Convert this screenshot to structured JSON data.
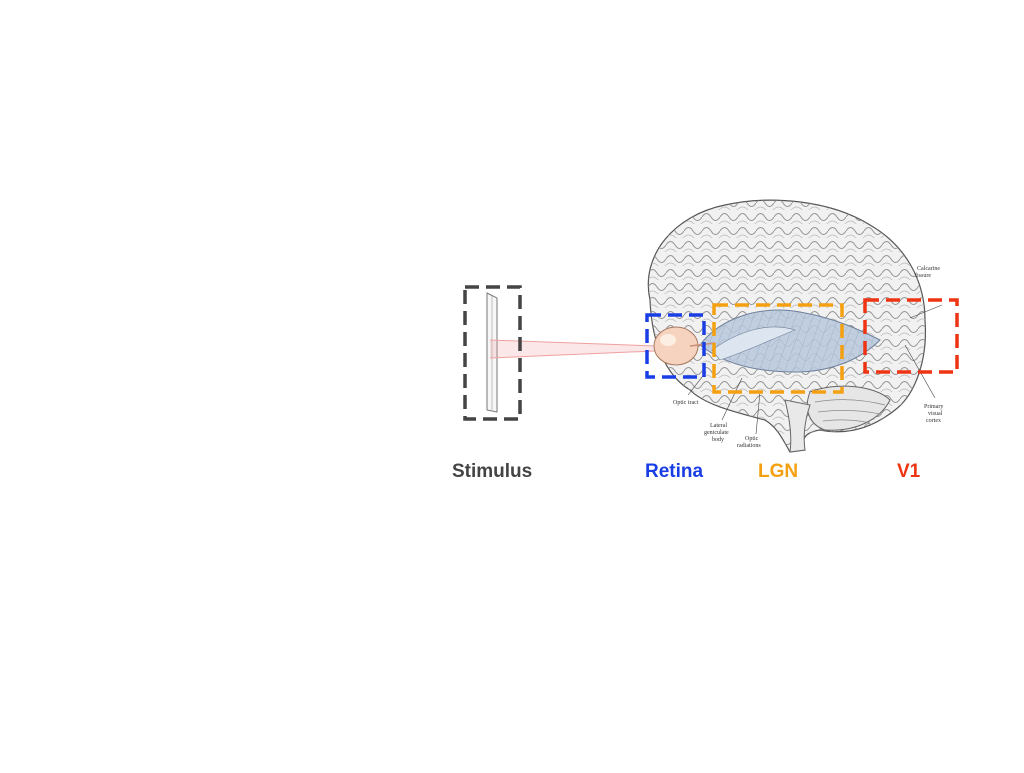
{
  "stages": {
    "stimulus": {
      "label": "Stimulus",
      "color": "#444444"
    },
    "retina": {
      "label": "Retina",
      "color": "#1a3ee6"
    },
    "lgn": {
      "label": "LGN",
      "color": "#f5a011"
    },
    "v1": {
      "label": "V1",
      "color": "#ee3412"
    }
  },
  "annotations": {
    "optic_tract": "Optic tract",
    "lateral_geniculate_1": "Lateral",
    "lateral_geniculate_2": "geniculate",
    "lateral_geniculate_3": "body",
    "optic_radiation_1": "Optic",
    "optic_radiation_2": "radiations",
    "calcarine_1": "Calcarine",
    "calcarine_2": "fissure",
    "visual_cortex_1": "Primary",
    "visual_cortex_2": "visual",
    "visual_cortex_3": "cortex"
  },
  "illustration": {
    "icon": "brain-icon",
    "brain_fill": "#f1f1f1",
    "tract_fill": "#b9c8dc",
    "eye_fill": "#f6d3bf",
    "ray_color": "#f0a0a0"
  }
}
